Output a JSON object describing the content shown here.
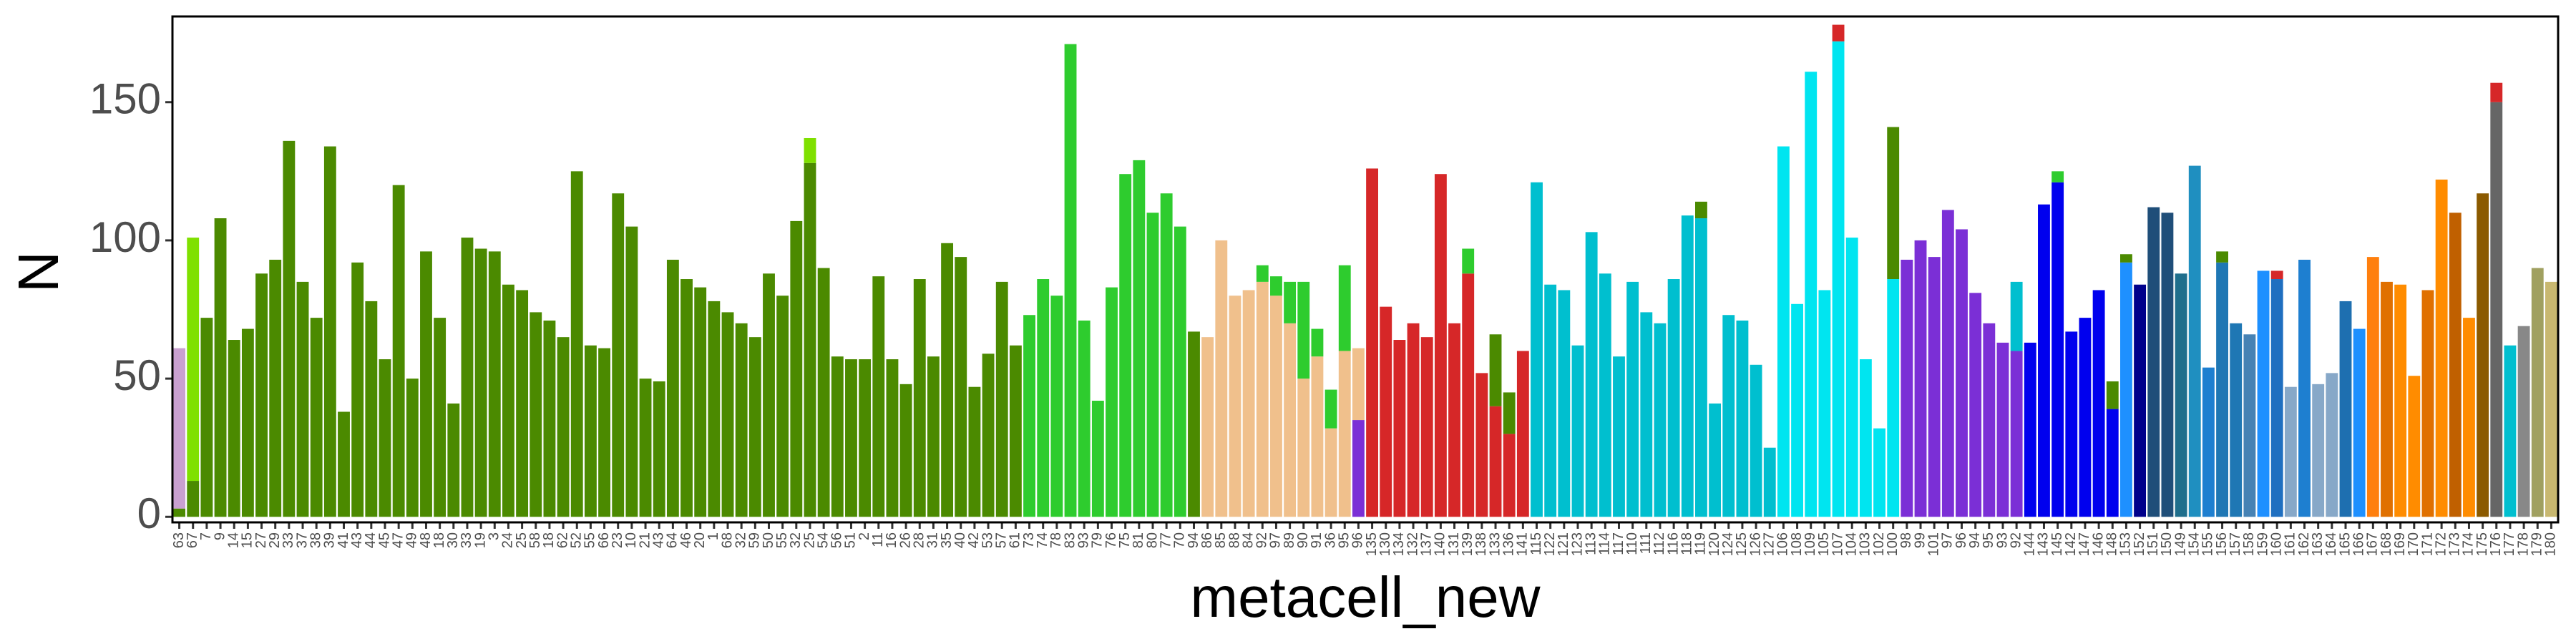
{
  "chart_data": {
    "type": "stacked-bar",
    "xlabel": "metacell_new",
    "ylabel": "N",
    "ylim": [
      -2,
      181
    ],
    "yticks": [
      0,
      50,
      100,
      150
    ],
    "categories": [
      "63",
      "67",
      "7",
      "9",
      "14",
      "15",
      "27",
      "29",
      "33",
      "37",
      "38",
      "39",
      "41",
      "43",
      "44",
      "45",
      "47",
      "49",
      "48",
      "18",
      "30",
      "33",
      "19",
      "3",
      "24",
      "25",
      "58",
      "18",
      "62",
      "52",
      "55",
      "66",
      "23",
      "10",
      "21",
      "43",
      "64",
      "46",
      "20",
      "1",
      "68",
      "32",
      "59",
      "50",
      "55",
      "32",
      "25",
      "54",
      "56",
      "51",
      "2",
      "11",
      "16",
      "26",
      "28",
      "31",
      "35",
      "40",
      "42",
      "53",
      "57",
      "61",
      "73",
      "74",
      "78",
      "83",
      "93",
      "79",
      "76",
      "75",
      "81",
      "80",
      "77",
      "70",
      "94",
      "86",
      "85",
      "88",
      "84",
      "92",
      "97",
      "89",
      "90",
      "91",
      "36",
      "95",
      "96",
      "135",
      "130",
      "134",
      "132",
      "137",
      "140",
      "131",
      "139",
      "138",
      "133",
      "136",
      "141",
      "115",
      "122",
      "121",
      "123",
      "113",
      "114",
      "117",
      "110",
      "111",
      "112",
      "116",
      "118",
      "119",
      "120",
      "124",
      "125",
      "126",
      "127",
      "106",
      "108",
      "109",
      "105",
      "107",
      "104",
      "103",
      "102",
      "100",
      "98",
      "99",
      "101",
      "97",
      "96",
      "94",
      "95",
      "93",
      "92",
      "144",
      "143",
      "145",
      "142",
      "147",
      "146",
      "148",
      "153",
      "152",
      "151",
      "150",
      "149",
      "154",
      "155",
      "156",
      "157",
      "158",
      "159",
      "160",
      "161",
      "162",
      "163",
      "164",
      "165",
      "166",
      "167",
      "168",
      "169",
      "170",
      "171",
      "172",
      "173",
      "174",
      "175",
      "176",
      "177",
      "178",
      "179",
      "180"
    ],
    "stacks": [
      [
        [
          "#4b8a00",
          3
        ],
        [
          "#c9a0d0",
          58
        ]
      ],
      [
        [
          "#4b8a00",
          13
        ],
        [
          "#7fe000",
          88
        ]
      ],
      [
        [
          "#4b8a00",
          72
        ]
      ],
      [
        [
          "#4b8a00",
          108
        ]
      ],
      [
        [
          "#4b8a00",
          64
        ]
      ],
      [
        [
          "#4b8a00",
          68
        ]
      ],
      [
        [
          "#4b8a00",
          88
        ]
      ],
      [
        [
          "#4b8a00",
          93
        ]
      ],
      [
        [
          "#4b8a00",
          136
        ]
      ],
      [
        [
          "#4b8a00",
          85
        ]
      ],
      [
        [
          "#4b8a00",
          72
        ]
      ],
      [
        [
          "#4b8a00",
          134
        ]
      ],
      [
        [
          "#4b8a00",
          38
        ]
      ],
      [
        [
          "#4b8a00",
          92
        ]
      ],
      [
        [
          "#4b8a00",
          78
        ]
      ],
      [
        [
          "#4b8a00",
          57
        ]
      ],
      [
        [
          "#4b8a00",
          120
        ]
      ],
      [
        [
          "#4b8a00",
          50
        ]
      ],
      [
        [
          "#4b8a00",
          96
        ]
      ],
      [
        [
          "#4b8a00",
          72
        ]
      ],
      [
        [
          "#4b8a00",
          41
        ]
      ],
      [
        [
          "#4b8a00",
          101
        ]
      ],
      [
        [
          "#4b8a00",
          97
        ]
      ],
      [
        [
          "#4b8a00",
          96
        ]
      ],
      [
        [
          "#4b8a00",
          84
        ]
      ],
      [
        [
          "#4b8a00",
          82
        ]
      ],
      [
        [
          "#4b8a00",
          74
        ]
      ],
      [
        [
          "#4b8a00",
          71
        ]
      ],
      [
        [
          "#4b8a00",
          65
        ]
      ],
      [
        [
          "#4b8a00",
          125
        ]
      ],
      [
        [
          "#4b8a00",
          62
        ]
      ],
      [
        [
          "#4b8a00",
          61
        ]
      ],
      [
        [
          "#4b8a00",
          117
        ]
      ],
      [
        [
          "#4b8a00",
          105
        ]
      ],
      [
        [
          "#4b8a00",
          50
        ]
      ],
      [
        [
          "#4b8a00",
          49
        ]
      ],
      [
        [
          "#4b8a00",
          93
        ]
      ],
      [
        [
          "#4b8a00",
          86
        ]
      ],
      [
        [
          "#4b8a00",
          83
        ]
      ],
      [
        [
          "#4b8a00",
          78
        ]
      ],
      [
        [
          "#4b8a00",
          74
        ]
      ],
      [
        [
          "#4b8a00",
          70
        ]
      ],
      [
        [
          "#4b8a00",
          65
        ]
      ],
      [
        [
          "#4b8a00",
          88
        ]
      ],
      [
        [
          "#4b8a00",
          80
        ]
      ],
      [
        [
          "#4b8a00",
          107
        ]
      ],
      [
        [
          "#4b8a00",
          128
        ],
        [
          "#7fe000",
          9
        ]
      ],
      [
        [
          "#4b8a00",
          90
        ]
      ],
      [
        [
          "#4b8a00",
          58
        ]
      ],
      [
        [
          "#4b8a00",
          57
        ]
      ],
      [
        [
          "#4b8a00",
          57
        ]
      ],
      [
        [
          "#4b8a00",
          87
        ]
      ],
      [
        [
          "#4b8a00",
          57
        ]
      ],
      [
        [
          "#4b8a00",
          48
        ]
      ],
      [
        [
          "#4b8a00",
          86
        ]
      ],
      [
        [
          "#4b8a00",
          58
        ]
      ],
      [
        [
          "#4b8a00",
          99
        ]
      ],
      [
        [
          "#4b8a00",
          94
        ]
      ],
      [
        [
          "#4b8a00",
          47
        ]
      ],
      [
        [
          "#4b8a00",
          59
        ]
      ],
      [
        [
          "#4b8a00",
          85
        ]
      ],
      [
        [
          "#4b8a00",
          62
        ]
      ],
      [
        [
          "#2ecc2e",
          73
        ]
      ],
      [
        [
          "#2ecc2e",
          86
        ]
      ],
      [
        [
          "#2ecc2e",
          80
        ]
      ],
      [
        [
          "#2ecc2e",
          171
        ]
      ],
      [
        [
          "#2ecc2e",
          71
        ]
      ],
      [
        [
          "#2ecc2e",
          42
        ]
      ],
      [
        [
          "#2ecc2e",
          83
        ]
      ],
      [
        [
          "#2ecc2e",
          124
        ]
      ],
      [
        [
          "#2ecc2e",
          129
        ]
      ],
      [
        [
          "#2ecc2e",
          110
        ]
      ],
      [
        [
          "#2ecc2e",
          117
        ]
      ],
      [
        [
          "#2ecc2e",
          105
        ]
      ],
      [
        [
          "#4b8a00",
          67
        ]
      ],
      [
        [
          "#f0c08c",
          65
        ]
      ],
      [
        [
          "#f0c08c",
          100
        ]
      ],
      [
        [
          "#f0c08c",
          80
        ]
      ],
      [
        [
          "#f0c08c",
          82
        ]
      ],
      [
        [
          "#f0c08c",
          85
        ],
        [
          "#2ecc2e",
          6
        ]
      ],
      [
        [
          "#f0c08c",
          80
        ],
        [
          "#2ecc2e",
          7
        ]
      ],
      [
        [
          "#f0c08c",
          70
        ],
        [
          "#2ecc2e",
          15
        ]
      ],
      [
        [
          "#f0c08c",
          50
        ],
        [
          "#2ecc2e",
          35
        ]
      ],
      [
        [
          "#f0c08c",
          58
        ],
        [
          "#2ecc2e",
          10
        ]
      ],
      [
        [
          "#f0c08c",
          32
        ],
        [
          "#2ecc2e",
          14
        ]
      ],
      [
        [
          "#f0c08c",
          60
        ],
        [
          "#2ecc2e",
          31
        ]
      ],
      [
        [
          "#7b2fd6",
          35
        ],
        [
          "#f0c08c",
          26
        ]
      ],
      [
        [
          "#d62728",
          126
        ]
      ],
      [
        [
          "#d62728",
          76
        ]
      ],
      [
        [
          "#d62728",
          64
        ]
      ],
      [
        [
          "#d62728",
          70
        ]
      ],
      [
        [
          "#d62728",
          65
        ]
      ],
      [
        [
          "#d62728",
          124
        ]
      ],
      [
        [
          "#d62728",
          70
        ]
      ],
      [
        [
          "#d62728",
          88
        ],
        [
          "#2ecc2e",
          9
        ]
      ],
      [
        [
          "#d62728",
          52
        ]
      ],
      [
        [
          "#d62728",
          40
        ],
        [
          "#4b8a00",
          26
        ]
      ],
      [
        [
          "#d62728",
          30
        ],
        [
          "#4b8a00",
          15
        ]
      ],
      [
        [
          "#d62728",
          60
        ]
      ],
      [
        [
          "#00bfcf",
          121
        ]
      ],
      [
        [
          "#00bfcf",
          84
        ]
      ],
      [
        [
          "#00bfcf",
          82
        ]
      ],
      [
        [
          "#00bfcf",
          62
        ]
      ],
      [
        [
          "#00bfcf",
          103
        ]
      ],
      [
        [
          "#00bfcf",
          88
        ]
      ],
      [
        [
          "#00bfcf",
          58
        ]
      ],
      [
        [
          "#00bfcf",
          85
        ]
      ],
      [
        [
          "#00bfcf",
          74
        ]
      ],
      [
        [
          "#00bfcf",
          70
        ]
      ],
      [
        [
          "#00bfcf",
          86
        ]
      ],
      [
        [
          "#00bfcf",
          109
        ]
      ],
      [
        [
          "#00bfcf",
          108
        ],
        [
          "#4b8a00",
          6
        ]
      ],
      [
        [
          "#00bfcf",
          41
        ]
      ],
      [
        [
          "#00bfcf",
          73
        ]
      ],
      [
        [
          "#00bfcf",
          71
        ]
      ],
      [
        [
          "#00bfcf",
          55
        ]
      ],
      [
        [
          "#00bfcf",
          25
        ]
      ],
      [
        [
          "#00e5f0",
          134
        ]
      ],
      [
        [
          "#00e5f0",
          77
        ]
      ],
      [
        [
          "#00e5f0",
          161
        ]
      ],
      [
        [
          "#00e5f0",
          82
        ]
      ],
      [
        [
          "#00e5f0",
          172
        ],
        [
          "#d62728",
          6
        ]
      ],
      [
        [
          "#00e5f0",
          101
        ]
      ],
      [
        [
          "#00e5f0",
          57
        ]
      ],
      [
        [
          "#00e5f0",
          32
        ]
      ],
      [
        [
          "#00e5f0",
          86
        ],
        [
          "#4b8a00",
          55
        ]
      ],
      [
        [
          "#7b2fd6",
          93
        ]
      ],
      [
        [
          "#7b2fd6",
          100
        ]
      ],
      [
        [
          "#7b2fd6",
          94
        ]
      ],
      [
        [
          "#7b2fd6",
          111
        ]
      ],
      [
        [
          "#7b2fd6",
          104
        ]
      ],
      [
        [
          "#7b2fd6",
          81
        ]
      ],
      [
        [
          "#7b2fd6",
          70
        ]
      ],
      [
        [
          "#7b2fd6",
          63
        ]
      ],
      [
        [
          "#7b2fd6",
          60
        ],
        [
          "#00bfcf",
          25
        ]
      ],
      [
        [
          "#0000ee",
          63
        ]
      ],
      [
        [
          "#0000ee",
          113
        ]
      ],
      [
        [
          "#0000ee",
          121
        ],
        [
          "#2ecc2e",
          4
        ]
      ],
      [
        [
          "#0000ee",
          67
        ]
      ],
      [
        [
          "#0000ee",
          72
        ]
      ],
      [
        [
          "#0000ee",
          82
        ]
      ],
      [
        [
          "#0000ee",
          39
        ],
        [
          "#4b8a00",
          10
        ]
      ],
      [
        [
          "#1e90ff",
          92
        ],
        [
          "#4b8a00",
          3
        ]
      ],
      [
        [
          "#00008b",
          84
        ]
      ],
      [
        [
          "#1f4e79",
          112
        ]
      ],
      [
        [
          "#1f4e79",
          110
        ]
      ],
      [
        [
          "#1f6e8c",
          88
        ]
      ],
      [
        [
          "#1f8fc0",
          127
        ]
      ],
      [
        [
          "#1e7fd0",
          54
        ]
      ],
      [
        [
          "#1f77b4",
          92
        ],
        [
          "#4b8a00",
          4
        ]
      ],
      [
        [
          "#1f77b4",
          70
        ]
      ],
      [
        [
          "#4682b4",
          66
        ]
      ],
      [
        [
          "#1e90ff",
          89
        ]
      ],
      [
        [
          "#1f6fc0",
          86
        ],
        [
          "#d62728",
          3
        ]
      ],
      [
        [
          "#87a8c8",
          47
        ]
      ],
      [
        [
          "#1e7fd0",
          93
        ]
      ],
      [
        [
          "#87a8c8",
          48
        ]
      ],
      [
        [
          "#87a8c8",
          52
        ]
      ],
      [
        [
          "#1e6fb0",
          78
        ]
      ],
      [
        [
          "#1e90ff",
          68
        ]
      ],
      [
        [
          "#ff7f0e",
          94
        ]
      ],
      [
        [
          "#e07000",
          85
        ]
      ],
      [
        [
          "#ff8c00",
          84
        ]
      ],
      [
        [
          "#ff8c00",
          51
        ]
      ],
      [
        [
          "#e07000",
          82
        ]
      ],
      [
        [
          "#ff8c00",
          122
        ]
      ],
      [
        [
          "#c06000",
          110
        ]
      ],
      [
        [
          "#ff8c00",
          72
        ]
      ],
      [
        [
          "#8b5a00",
          117
        ]
      ],
      [
        [
          "#666666",
          150
        ],
        [
          "#d62728",
          7
        ]
      ],
      [
        [
          "#00bfcf",
          62
        ]
      ],
      [
        [
          "#888888",
          69
        ]
      ],
      [
        [
          "#a0a060",
          90
        ]
      ],
      [
        [
          "#c8b870",
          85
        ]
      ]
    ]
  }
}
